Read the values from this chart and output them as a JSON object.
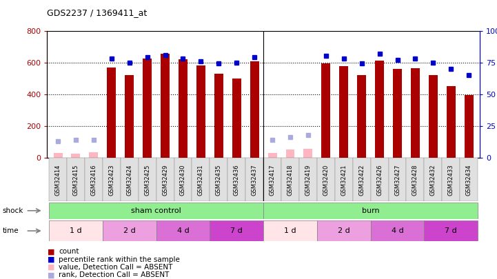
{
  "title": "GDS2237 / 1369411_at",
  "samples": [
    "GSM32414",
    "GSM32415",
    "GSM32416",
    "GSM32423",
    "GSM32424",
    "GSM32425",
    "GSM32429",
    "GSM32430",
    "GSM32431",
    "GSM32435",
    "GSM32436",
    "GSM32437",
    "GSM32417",
    "GSM32418",
    "GSM32419",
    "GSM32420",
    "GSM32421",
    "GSM32422",
    "GSM32426",
    "GSM32427",
    "GSM32428",
    "GSM32432",
    "GSM32433",
    "GSM32434"
  ],
  "count_values": [
    30,
    25,
    35,
    570,
    520,
    625,
    655,
    620,
    580,
    530,
    500,
    605,
    30,
    50,
    55,
    595,
    575,
    520,
    610,
    560,
    565,
    520,
    450,
    395
  ],
  "rank_values": [
    13,
    14,
    14,
    78,
    75,
    79,
    81,
    78,
    76,
    74,
    75,
    79,
    14,
    16,
    18,
    80,
    78,
    74,
    82,
    77,
    78,
    75,
    70,
    65
  ],
  "absent_mask": [
    true,
    true,
    true,
    false,
    false,
    false,
    false,
    false,
    false,
    false,
    false,
    false,
    true,
    true,
    true,
    false,
    false,
    false,
    false,
    false,
    false,
    false,
    false,
    false
  ],
  "time_groups": [
    {
      "label": "1 d",
      "start": 0,
      "end": 2,
      "color": "#FFE4E8"
    },
    {
      "label": "2 d",
      "start": 3,
      "end": 5,
      "color": "#EDA0E0"
    },
    {
      "label": "4 d",
      "start": 6,
      "end": 8,
      "color": "#DA70D6"
    },
    {
      "label": "7 d",
      "start": 9,
      "end": 11,
      "color": "#CC44CC"
    },
    {
      "label": "1 d",
      "start": 12,
      "end": 14,
      "color": "#FFE4E8"
    },
    {
      "label": "2 d",
      "start": 15,
      "end": 17,
      "color": "#EDA0E0"
    },
    {
      "label": "4 d",
      "start": 18,
      "end": 20,
      "color": "#DA70D6"
    },
    {
      "label": "7 d",
      "start": 21,
      "end": 23,
      "color": "#CC44CC"
    }
  ],
  "ylim_left": [
    0,
    800
  ],
  "ylim_right": [
    0,
    100
  ],
  "yticks_left": [
    0,
    200,
    400,
    600,
    800
  ],
  "yticks_right": [
    0,
    25,
    50,
    75,
    100
  ],
  "bar_color": "#AA0000",
  "bar_color_absent": "#FFB6C1",
  "rank_color": "#0000CC",
  "rank_color_absent": "#AAAADD"
}
